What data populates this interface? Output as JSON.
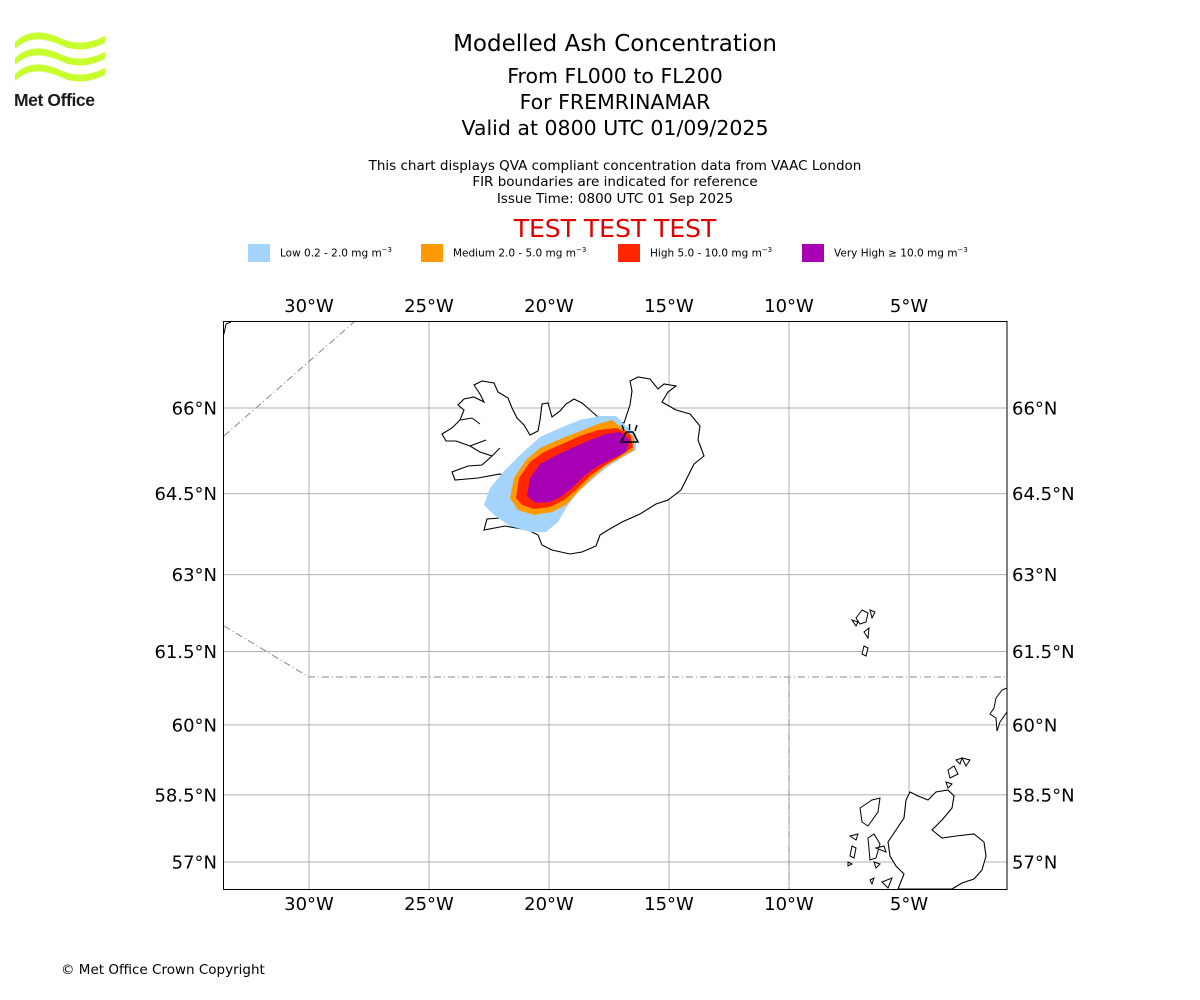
{
  "logo": {
    "name": "Met Office"
  },
  "header": {
    "title": "Modelled Ash Concentration",
    "levels": "From FL000 to FL200",
    "location": "For FREMRINAMAR",
    "valid": "Valid at 0800 UTC 01/09/2025",
    "desc1": "This chart displays QVA compliant concentration data from VAAC London",
    "desc2": "FIR boundaries are indicated for reference",
    "issue": "Issue Time: 0800 UTC 01 Sep 2025",
    "test_banner": "TEST TEST TEST"
  },
  "legend": [
    {
      "label": "Low 0.2 - 2.0 mg m",
      "color": "#a4d4fb"
    },
    {
      "label": "Medium 2.0 - 5.0 mg m",
      "color": "#ff9900"
    },
    {
      "label": "High 5.0 - 10.0 mg m",
      "color": "#ff2600"
    },
    {
      "label": "Very High ≥ 10.0 mg m",
      "color": "#a800b4"
    }
  ],
  "legend_exponent": "−3",
  "map": {
    "lon_ticks": [
      "30°W",
      "25°W",
      "20°W",
      "15°W",
      "10°W",
      "5°W"
    ],
    "lat_ticks": [
      "66°N",
      "64.5°N",
      "63°N",
      "61.5°N",
      "60°N",
      "58.5°N",
      "57°N"
    ],
    "lon_values": [
      -30,
      -25,
      -20,
      -15,
      -10,
      -5
    ],
    "lat_values": [
      66,
      64.5,
      63,
      61.5,
      60,
      58.5,
      57
    ],
    "volcano": {
      "name": "Fremrinamar",
      "lon": -16.6,
      "lat": 65.45
    }
  },
  "footer": {
    "copyright": "© Met Office Crown Copyright"
  }
}
